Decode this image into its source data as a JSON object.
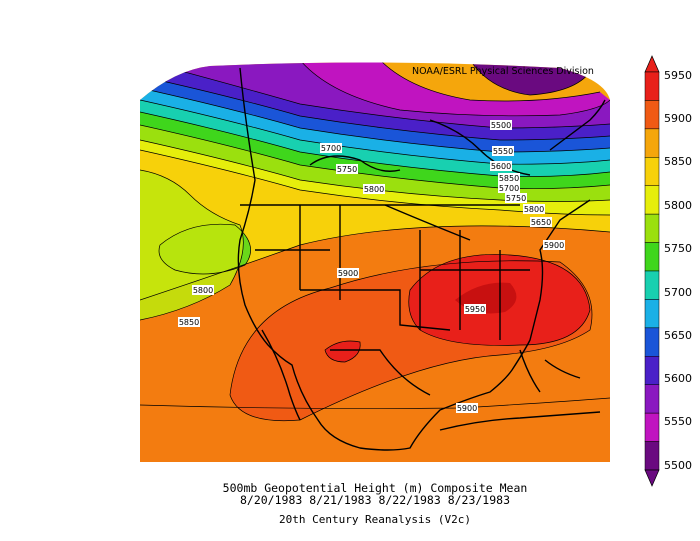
{
  "credit": "NOAA/ESRL Physical Sciences Division",
  "title_line1": "500mb Geopotential Height (m) Composite Mean",
  "title_line2": "8/20/1983 8/21/1983 8/22/1983 8/23/1983",
  "source": "20th Century Reanalysis (V2c)",
  "colorbar": {
    "levels": [
      "5950",
      "5900",
      "5850",
      "5800",
      "5750",
      "5700",
      "5650",
      "5600",
      "5550",
      "5500"
    ],
    "colors": [
      "#e8201a",
      "#f05a14",
      "#f5a60c",
      "#f7d10a",
      "#e6ee0c",
      "#9be00e",
      "#3fd61c",
      "#18d0b0",
      "#1ab0e6",
      "#1a55d8",
      "#4a20c8",
      "#8a18c0",
      "#c014c0",
      "#6a0a80"
    ]
  },
  "contour_labels": [
    "5500",
    "5550",
    "5600",
    "5650",
    "5700",
    "5750",
    "5800",
    "5850",
    "5900",
    "5950",
    "5700",
    "5750",
    "5800",
    "5800",
    "5850",
    "5900",
    "5950",
    "5900",
    "5900"
  ]
}
